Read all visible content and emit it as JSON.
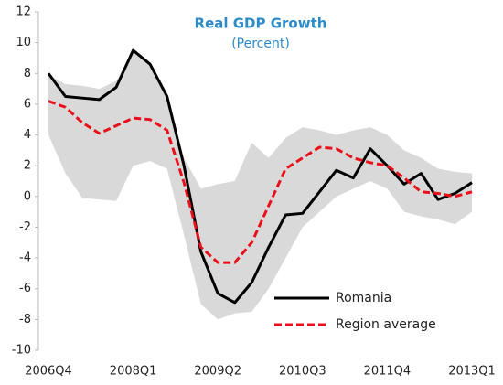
{
  "chart_data": {
    "type": "line",
    "title": "Real GDP Growth",
    "subtitle": "(Percent)",
    "categories": [
      "2006Q4",
      null,
      null,
      null,
      null,
      "2008Q1",
      null,
      null,
      null,
      null,
      "2009Q2",
      null,
      null,
      null,
      null,
      "2010Q3",
      null,
      null,
      null,
      null,
      "2011Q4",
      null,
      null,
      null,
      null,
      "2013Q1"
    ],
    "series": [
      {
        "name": "Romania",
        "color": "#000000",
        "dash": "solid",
        "values": [
          8.0,
          6.5,
          6.4,
          6.3,
          7.1,
          9.5,
          8.6,
          6.5,
          2.0,
          -3.6,
          -6.3,
          -6.9,
          -5.6,
          -3.3,
          -1.2,
          -1.1,
          0.3,
          1.7,
          1.2,
          3.1,
          2.0,
          0.8,
          1.5,
          -0.2,
          0.2,
          0.9
        ]
      },
      {
        "name": "Region average",
        "color": "#e8101a",
        "dash": "dashed",
        "values": [
          6.2,
          5.8,
          4.8,
          4.1,
          4.6,
          5.1,
          5.0,
          4.3,
          0.9,
          -3.3,
          -4.3,
          -4.3,
          -3.0,
          -0.6,
          1.8,
          2.5,
          3.2,
          3.1,
          2.5,
          2.2,
          2.0,
          1.2,
          0.3,
          0.2,
          0.0,
          0.3
        ]
      }
    ],
    "band": {
      "color": "#d9d9d9",
      "upper": [
        7.9,
        7.3,
        7.2,
        7.0,
        7.5,
        9.5,
        8.6,
        6.6,
        2.5,
        0.5,
        0.8,
        1.0,
        3.5,
        2.5,
        3.8,
        4.5,
        4.3,
        4.0,
        4.3,
        4.5,
        4.0,
        3.0,
        2.5,
        1.8,
        1.6,
        1.5
      ],
      "lower": [
        4.0,
        1.5,
        -0.1,
        -0.2,
        -0.3,
        2.0,
        2.3,
        1.8,
        -2.5,
        -7.0,
        -8.0,
        -7.6,
        -7.5,
        -6.0,
        -4.0,
        -2.0,
        -1.0,
        0.0,
        0.5,
        1.0,
        0.5,
        -1.0,
        -1.3,
        -1.5,
        -1.8,
        -1.0
      ]
    },
    "ylim": [
      -10,
      12
    ],
    "yticks": [
      -10,
      -8,
      -6,
      -4,
      -2,
      0,
      2,
      4,
      6,
      8,
      10,
      12
    ],
    "legend": "lower right"
  }
}
